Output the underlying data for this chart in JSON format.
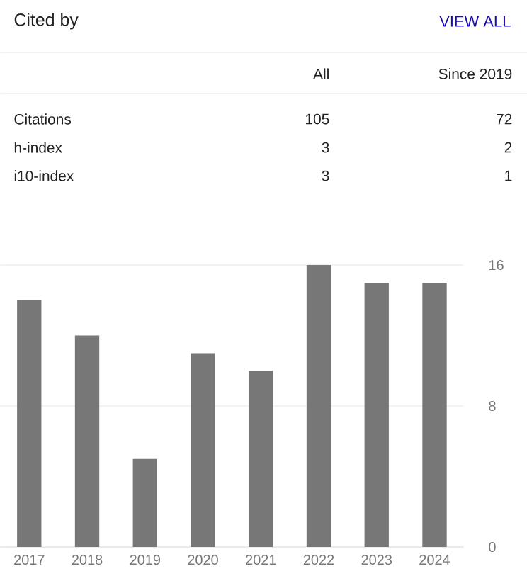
{
  "chart_data": [
    {
      "type": "other",
      "title": "Cited by",
      "annotations": [
        "VIEW ALL",
        "All",
        "Since 2019",
        "Citations",
        "105",
        "72",
        "h-index",
        "3",
        "2",
        "i10-index",
        "3",
        "1"
      ]
    },
    {
      "type": "bar",
      "categories": [
        "2017",
        "2018",
        "2019",
        "2020",
        "2021",
        "2022",
        "2023",
        "2024"
      ],
      "values": [
        14,
        12,
        5,
        11,
        10,
        16,
        15,
        15
      ],
      "color": "#777777",
      "ylim": [
        0,
        16
      ],
      "yticks": [
        0,
        8,
        16
      ],
      "grid": "y"
    }
  ]
}
